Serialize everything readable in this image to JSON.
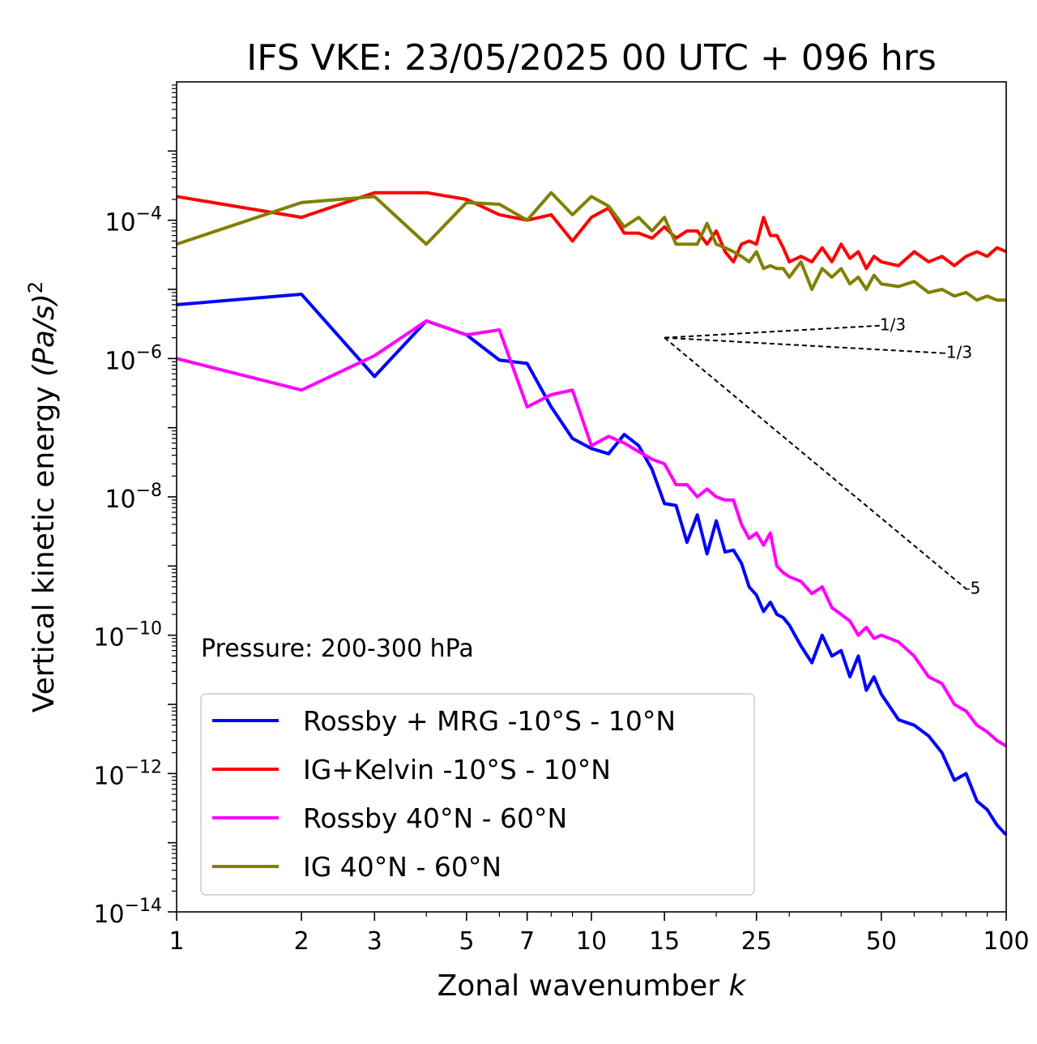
{
  "chart_data": {
    "type": "line",
    "title": "IFS VKE: 23/05/2025 00 UTC + 096 hrs",
    "xlabel": "Zonal wavenumber",
    "xlabel_var": "k",
    "ylabel": "Vertical kinetic energy",
    "ylabel_unit": "(Pa/s)",
    "ylabel_unit_exp": "2",
    "x_scale": "log",
    "y_scale": "log",
    "xlim": [
      1,
      100
    ],
    "ylim": [
      1e-14,
      0.01
    ],
    "xticks": [
      1,
      2,
      3,
      5,
      7,
      10,
      15,
      25,
      50,
      100
    ],
    "xtick_labels": [
      "1",
      "2",
      "3",
      "5",
      "7",
      "10",
      "15",
      "25",
      "50",
      "100"
    ],
    "yticks": [
      1e-14,
      1e-12,
      1e-10,
      1e-08,
      1e-06,
      0.0001
    ],
    "ytick_bases": [
      "10",
      "10",
      "10",
      "10",
      "10",
      "10"
    ],
    "ytick_exps": [
      "−14",
      "−12",
      "−10",
      "−8",
      "−6",
      "−4"
    ],
    "annotation": "Pressure: 200-300 hPa",
    "legend_location": "lower-left",
    "slope_lines": [
      {
        "label": "1/3",
        "from": [
          15,
          2e-06
        ],
        "to": [
          50,
          3e-06
        ]
      },
      {
        "label": "-1/3",
        "from": [
          15,
          2e-06
        ],
        "to": [
          70,
          1.2e-06
        ]
      },
      {
        "label": "-5",
        "from": [
          15,
          2e-06
        ],
        "to": [
          80,
          4.7e-10
        ]
      }
    ],
    "series": [
      {
        "name": "Rossby + MRG -10°S - 10°N",
        "color": "#0000ff",
        "x": [
          1,
          2,
          3,
          4,
          5,
          6,
          7,
          8,
          9,
          10,
          11,
          12,
          13,
          14,
          15,
          16,
          17,
          18,
          19,
          20,
          21,
          22,
          23,
          24,
          25,
          26,
          27,
          28,
          29,
          30,
          32,
          34,
          36,
          38,
          40,
          42,
          44,
          46,
          48,
          50,
          55,
          60,
          65,
          70,
          75,
          80,
          85,
          90,
          95,
          100
        ],
        "y": [
          6e-06,
          8.5e-06,
          5.5e-07,
          3.5e-06,
          2.2e-06,
          9.5e-07,
          8.5e-07,
          2e-07,
          7e-08,
          5e-08,
          4.2e-08,
          8e-08,
          5.5e-08,
          2.5e-08,
          8e-09,
          7.5e-09,
          2.2e-09,
          5.5e-09,
          1.5e-09,
          4.5e-09,
          1.6e-09,
          1.7e-09,
          1.1e-09,
          5e-10,
          3.8e-10,
          2.2e-10,
          3e-10,
          2e-10,
          1.8e-10,
          1.4e-10,
          7e-11,
          4e-11,
          1e-10,
          5e-11,
          6e-11,
          2.5e-11,
          5e-11,
          1.6e-11,
          2.5e-11,
          1.4e-11,
          6e-12,
          5e-12,
          3.5e-12,
          2e-12,
          8e-13,
          1e-12,
          4e-13,
          3e-13,
          1.8e-13,
          1.3e-13
        ]
      },
      {
        "name": "IG+Kelvin -10°S - 10°N",
        "color": "#ff0000",
        "x": [
          1,
          2,
          3,
          4,
          5,
          6,
          7,
          8,
          9,
          10,
          11,
          12,
          13,
          14,
          15,
          16,
          17,
          18,
          19,
          20,
          21,
          22,
          23,
          24,
          25,
          26,
          27,
          28,
          29,
          30,
          32,
          34,
          36,
          38,
          40,
          42,
          44,
          46,
          48,
          50,
          55,
          60,
          65,
          70,
          75,
          80,
          85,
          90,
          95,
          100
        ],
        "y": [
          0.00022,
          0.00011,
          0.00025,
          0.00025,
          0.0002,
          0.00012,
          0.0001,
          0.00012,
          5e-05,
          0.00011,
          0.00015,
          6.5e-05,
          6.5e-05,
          5.5e-05,
          8e-05,
          5.5e-05,
          7e-05,
          7e-05,
          4.5e-05,
          7e-05,
          3.5e-05,
          2.5e-05,
          4.5e-05,
          5e-05,
          4.5e-05,
          0.00011,
          6e-05,
          6e-05,
          4e-05,
          2.5e-05,
          3e-05,
          2.5e-05,
          4e-05,
          2.5e-05,
          4.5e-05,
          2.8e-05,
          3.5e-05,
          2e-05,
          3e-05,
          2.5e-05,
          2.2e-05,
          3.5e-05,
          2.5e-05,
          3e-05,
          2.2e-05,
          3e-05,
          3.5e-05,
          3e-05,
          4e-05,
          3.5e-05
        ]
      },
      {
        "name": "Rossby 40°N - 60°N",
        "color": "#ff00ff",
        "x": [
          1,
          2,
          3,
          4,
          5,
          6,
          7,
          8,
          9,
          10,
          11,
          12,
          13,
          14,
          15,
          16,
          17,
          18,
          19,
          20,
          21,
          22,
          23,
          24,
          25,
          26,
          27,
          28,
          29,
          30,
          32,
          34,
          36,
          38,
          40,
          42,
          44,
          46,
          48,
          50,
          55,
          60,
          65,
          70,
          75,
          80,
          85,
          90,
          95,
          100
        ],
        "y": [
          1e-06,
          3.5e-07,
          1.1e-06,
          3.5e-06,
          2.2e-06,
          2.6e-06,
          2e-07,
          3e-07,
          3.5e-07,
          5.5e-08,
          7.5e-08,
          6e-08,
          4.5e-08,
          3.5e-08,
          3e-08,
          1.5e-08,
          1.5e-08,
          1e-08,
          1.3e-08,
          1e-08,
          9e-09,
          9e-09,
          4e-09,
          2.5e-09,
          3e-09,
          2e-09,
          3e-09,
          1e-09,
          8e-10,
          7e-10,
          6e-10,
          4e-10,
          5e-10,
          2.5e-10,
          2e-10,
          1.6e-10,
          1e-10,
          1.3e-10,
          9e-11,
          1e-10,
          8e-11,
          5e-11,
          2.5e-11,
          2e-11,
          1e-11,
          8e-12,
          5e-12,
          4e-12,
          3e-12,
          2.5e-12
        ]
      },
      {
        "name": "IG 40°N - 60°N",
        "color": "#808000",
        "x": [
          1,
          2,
          3,
          4,
          5,
          6,
          7,
          8,
          9,
          10,
          11,
          12,
          13,
          14,
          15,
          16,
          17,
          18,
          19,
          20,
          21,
          22,
          23,
          24,
          25,
          26,
          27,
          28,
          29,
          30,
          32,
          34,
          36,
          38,
          40,
          42,
          44,
          46,
          48,
          50,
          55,
          60,
          65,
          70,
          75,
          80,
          85,
          90,
          95,
          100
        ],
        "y": [
          4.5e-05,
          0.00018,
          0.00022,
          4.5e-05,
          0.00018,
          0.00017,
          0.0001,
          0.00025,
          0.00012,
          0.00022,
          0.00016,
          8e-05,
          0.00011,
          7e-05,
          0.00011,
          4.5e-05,
          4.5e-05,
          4.5e-05,
          9e-05,
          4.5e-05,
          4e-05,
          3.5e-05,
          3e-05,
          2.5e-05,
          3.5e-05,
          2e-05,
          2.2e-05,
          2e-05,
          2e-05,
          1.5e-05,
          2.5e-05,
          1e-05,
          2e-05,
          1.5e-05,
          2e-05,
          1.2e-05,
          1.5e-05,
          1e-05,
          1.6e-05,
          1.2e-05,
          1.1e-05,
          1.3e-05,
          9e-06,
          1e-05,
          8e-06,
          9e-06,
          7e-06,
          8e-06,
          7e-06,
          7e-06
        ]
      }
    ]
  }
}
